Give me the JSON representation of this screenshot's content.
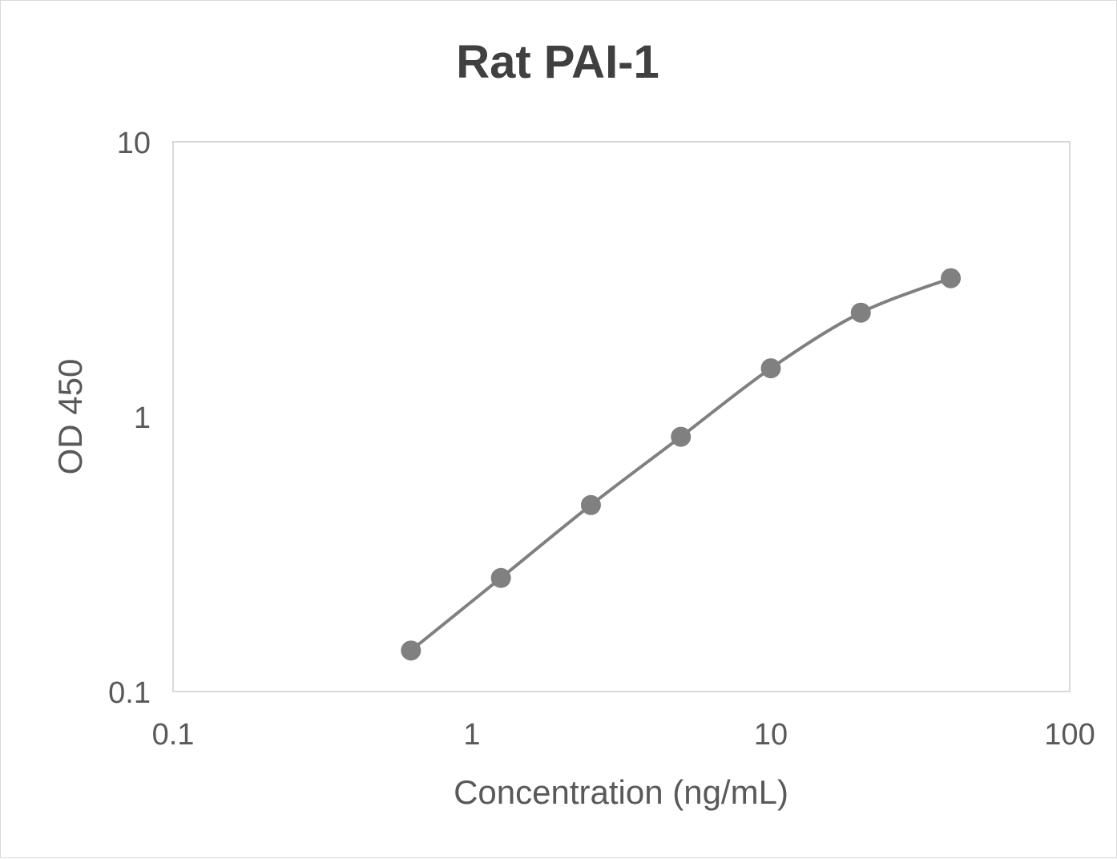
{
  "chart_data": {
    "type": "line",
    "title": "Rat PAI-1",
    "xlabel": "Concentration (ng/mL)",
    "ylabel": "OD 450",
    "xscale": "log",
    "yscale": "log",
    "xlim": [
      0.1,
      100
    ],
    "ylim": [
      0.1,
      10
    ],
    "xticks": [
      "0.1",
      "1",
      "10",
      "100"
    ],
    "yticks": [
      "0.1",
      "1",
      "10"
    ],
    "grid": false,
    "legend": "none",
    "smoothed": true,
    "series": [
      {
        "x": [
          0.625,
          1.25,
          2.5,
          5,
          10,
          20,
          40
        ],
        "y": [
          0.141,
          0.259,
          0.477,
          0.845,
          1.5,
          2.39,
          3.19
        ],
        "color": "#808080"
      }
    ],
    "colors": {
      "title": "#404040",
      "text": "#595959",
      "axis": "#d9d9d9"
    }
  }
}
